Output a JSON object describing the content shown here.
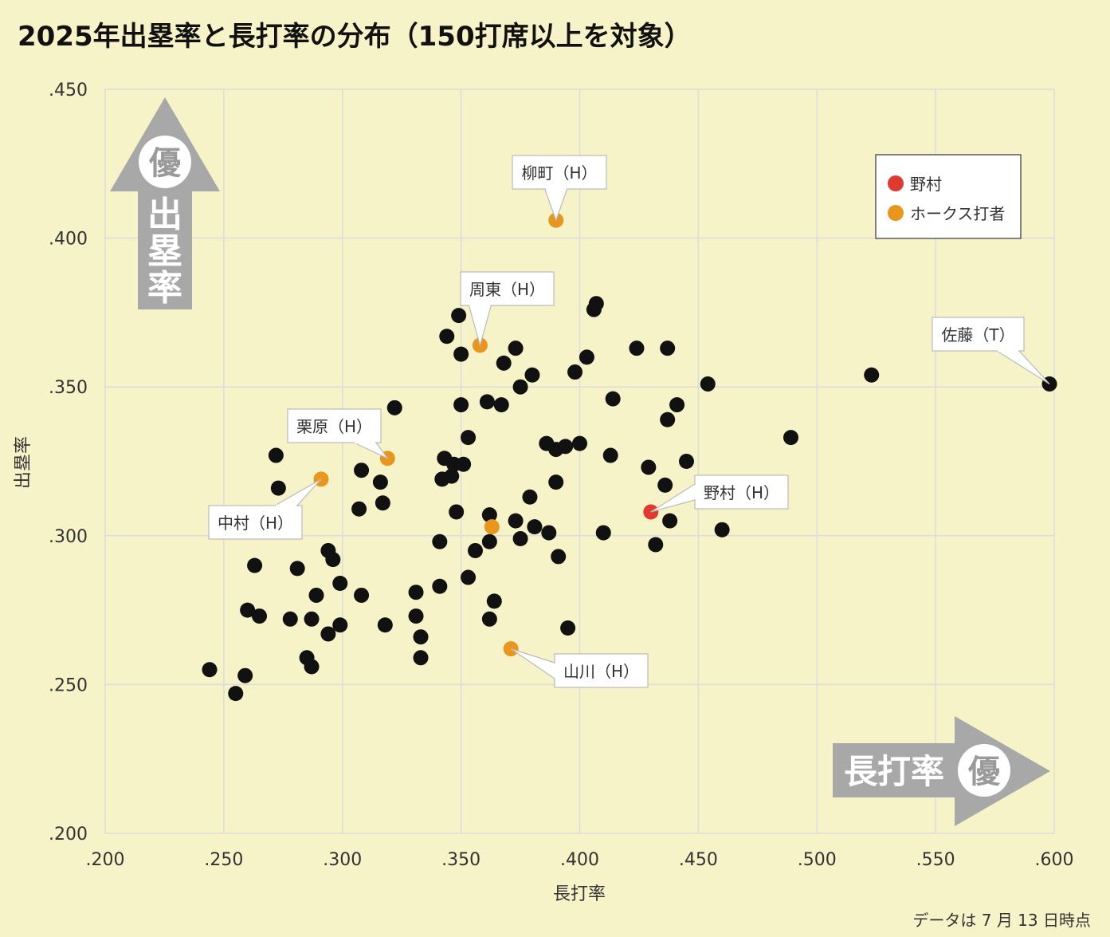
{
  "title": "2025年出塁率と長打率の分布（150打席以上を対象）",
  "footnote": "データは 7 月 13 日時点",
  "colors": {
    "background": "#f6f3c8",
    "grid": "#dcdcdc",
    "other": "#111111",
    "hawks": "#e8961e",
    "nomura": "#e03a30",
    "arrow": "#a8a8a8"
  },
  "badges": {
    "y_arrow_badge": "優",
    "y_arrow_text": "出塁率",
    "x_arrow_text": "長打率",
    "x_arrow_badge": "優"
  },
  "chart_data": {
    "type": "scatter",
    "title": "2025年出塁率と長打率の分布（150打席以上を対象）",
    "xlabel": "長打率",
    "ylabel": "出塁率",
    "xlim": [
      0.2,
      0.6
    ],
    "ylim": [
      0.2,
      0.45
    ],
    "xticks": [
      ".200",
      ".250",
      ".300",
      ".350",
      ".400",
      ".450",
      ".500",
      ".550",
      ".600"
    ],
    "yticks": [
      ".200",
      ".250",
      ".300",
      ".350",
      ".400",
      ".450"
    ],
    "grid": true,
    "legend_position": "top-right",
    "legend": [
      {
        "name": "野村",
        "color": "#e03a30"
      },
      {
        "name": "ホークス打者",
        "color": "#e8961e"
      }
    ],
    "series": [
      {
        "name": "",
        "color": "#111111",
        "points": [
          [
            0.244,
            0.255
          ],
          [
            0.255,
            0.247
          ],
          [
            0.259,
            0.253
          ],
          [
            0.26,
            0.275
          ],
          [
            0.263,
            0.29
          ],
          [
            0.265,
            0.273
          ],
          [
            0.272,
            0.327
          ],
          [
            0.273,
            0.316
          ],
          [
            0.278,
            0.272
          ],
          [
            0.281,
            0.289
          ],
          [
            0.285,
            0.259
          ],
          [
            0.287,
            0.256
          ],
          [
            0.287,
            0.272
          ],
          [
            0.289,
            0.28
          ],
          [
            0.294,
            0.295
          ],
          [
            0.294,
            0.267
          ],
          [
            0.296,
            0.292
          ],
          [
            0.299,
            0.284
          ],
          [
            0.299,
            0.27
          ],
          [
            0.307,
            0.309
          ],
          [
            0.308,
            0.322
          ],
          [
            0.308,
            0.28
          ],
          [
            0.316,
            0.318
          ],
          [
            0.317,
            0.311
          ],
          [
            0.318,
            0.27
          ],
          [
            0.322,
            0.343
          ],
          [
            0.331,
            0.281
          ],
          [
            0.331,
            0.273
          ],
          [
            0.333,
            0.266
          ],
          [
            0.333,
            0.259
          ],
          [
            0.341,
            0.298
          ],
          [
            0.341,
            0.283
          ],
          [
            0.342,
            0.319
          ],
          [
            0.343,
            0.326
          ],
          [
            0.344,
            0.367
          ],
          [
            0.346,
            0.32
          ],
          [
            0.347,
            0.324
          ],
          [
            0.348,
            0.308
          ],
          [
            0.349,
            0.374
          ],
          [
            0.35,
            0.361
          ],
          [
            0.35,
            0.344
          ],
          [
            0.351,
            0.324
          ],
          [
            0.353,
            0.333
          ],
          [
            0.353,
            0.286
          ],
          [
            0.356,
            0.295
          ],
          [
            0.361,
            0.345
          ],
          [
            0.362,
            0.307
          ],
          [
            0.362,
            0.298
          ],
          [
            0.362,
            0.272
          ],
          [
            0.364,
            0.278
          ],
          [
            0.367,
            0.344
          ],
          [
            0.368,
            0.358
          ],
          [
            0.373,
            0.363
          ],
          [
            0.373,
            0.305
          ],
          [
            0.375,
            0.35
          ],
          [
            0.375,
            0.299
          ],
          [
            0.379,
            0.313
          ],
          [
            0.38,
            0.354
          ],
          [
            0.381,
            0.303
          ],
          [
            0.386,
            0.331
          ],
          [
            0.387,
            0.301
          ],
          [
            0.39,
            0.329
          ],
          [
            0.39,
            0.318
          ],
          [
            0.391,
            0.293
          ],
          [
            0.394,
            0.33
          ],
          [
            0.395,
            0.269
          ],
          [
            0.398,
            0.355
          ],
          [
            0.4,
            0.331
          ],
          [
            0.403,
            0.36
          ],
          [
            0.406,
            0.376
          ],
          [
            0.407,
            0.378
          ],
          [
            0.41,
            0.301
          ],
          [
            0.413,
            0.327
          ],
          [
            0.414,
            0.346
          ],
          [
            0.424,
            0.363
          ],
          [
            0.429,
            0.323
          ],
          [
            0.432,
            0.297
          ],
          [
            0.436,
            0.317
          ],
          [
            0.437,
            0.363
          ],
          [
            0.437,
            0.339
          ],
          [
            0.438,
            0.305
          ],
          [
            0.441,
            0.344
          ],
          [
            0.445,
            0.325
          ],
          [
            0.454,
            0.351
          ],
          [
            0.46,
            0.302
          ],
          [
            0.489,
            0.333
          ],
          [
            0.523,
            0.354
          ],
          [
            0.598,
            0.351
          ]
        ]
      },
      {
        "name": "ホークス打者",
        "color": "#e8961e",
        "points": [
          [
            0.39,
            0.406
          ],
          [
            0.358,
            0.364
          ],
          [
            0.319,
            0.326
          ],
          [
            0.291,
            0.319
          ],
          [
            0.363,
            0.303
          ],
          [
            0.371,
            0.262
          ]
        ]
      },
      {
        "name": "野村",
        "color": "#e03a30",
        "points": [
          [
            0.43,
            0.308
          ]
        ]
      }
    ],
    "annotations": [
      {
        "text": "柳町（H）",
        "x": 0.39,
        "y": 0.406
      },
      {
        "text": "周東（H）",
        "x": 0.358,
        "y": 0.364
      },
      {
        "text": "佐藤（T）",
        "x": 0.598,
        "y": 0.351
      },
      {
        "text": "栗原（H）",
        "x": 0.319,
        "y": 0.326
      },
      {
        "text": "中村（H）",
        "x": 0.291,
        "y": 0.319
      },
      {
        "text": "野村（H）",
        "x": 0.43,
        "y": 0.308
      },
      {
        "text": "山川（H）",
        "x": 0.371,
        "y": 0.262
      }
    ]
  }
}
